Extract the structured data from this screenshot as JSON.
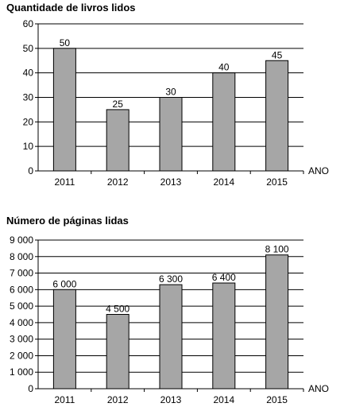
{
  "chart_data": [
    {
      "type": "bar",
      "title": "Quantidade de livros lidos",
      "xlabel": "ANO",
      "ylabel": "",
      "categories": [
        "2011",
        "2012",
        "2013",
        "2014",
        "2015"
      ],
      "values": [
        50,
        25,
        30,
        40,
        45
      ],
      "value_labels": [
        "50",
        "25",
        "30",
        "40",
        "45"
      ],
      "ylim": [
        0,
        60
      ],
      "yticks": [
        0,
        10,
        20,
        30,
        40,
        50,
        60
      ],
      "ytick_labels": [
        "0",
        "10",
        "20",
        "30",
        "40",
        "50",
        "60"
      ],
      "grid": true,
      "bar_color": "#a6a6a6"
    },
    {
      "type": "bar",
      "title": "Número de páginas lidas",
      "xlabel": "ANO",
      "ylabel": "",
      "categories": [
        "2011",
        "2012",
        "2013",
        "2014",
        "2015"
      ],
      "values": [
        6000,
        4500,
        6300,
        6400,
        8100
      ],
      "value_labels": [
        "6 000",
        "4 500",
        "6 300",
        "6 400",
        "8 100"
      ],
      "ylim": [
        0,
        9000
      ],
      "yticks": [
        0,
        1000,
        2000,
        3000,
        4000,
        5000,
        6000,
        7000,
        8000,
        9000
      ],
      "ytick_labels": [
        "0",
        "1 000",
        "2 000",
        "3 000",
        "4 000",
        "5 000",
        "6 000",
        "7 000",
        "8 000",
        "9 000"
      ],
      "grid": true,
      "bar_color": "#a6a6a6"
    }
  ]
}
